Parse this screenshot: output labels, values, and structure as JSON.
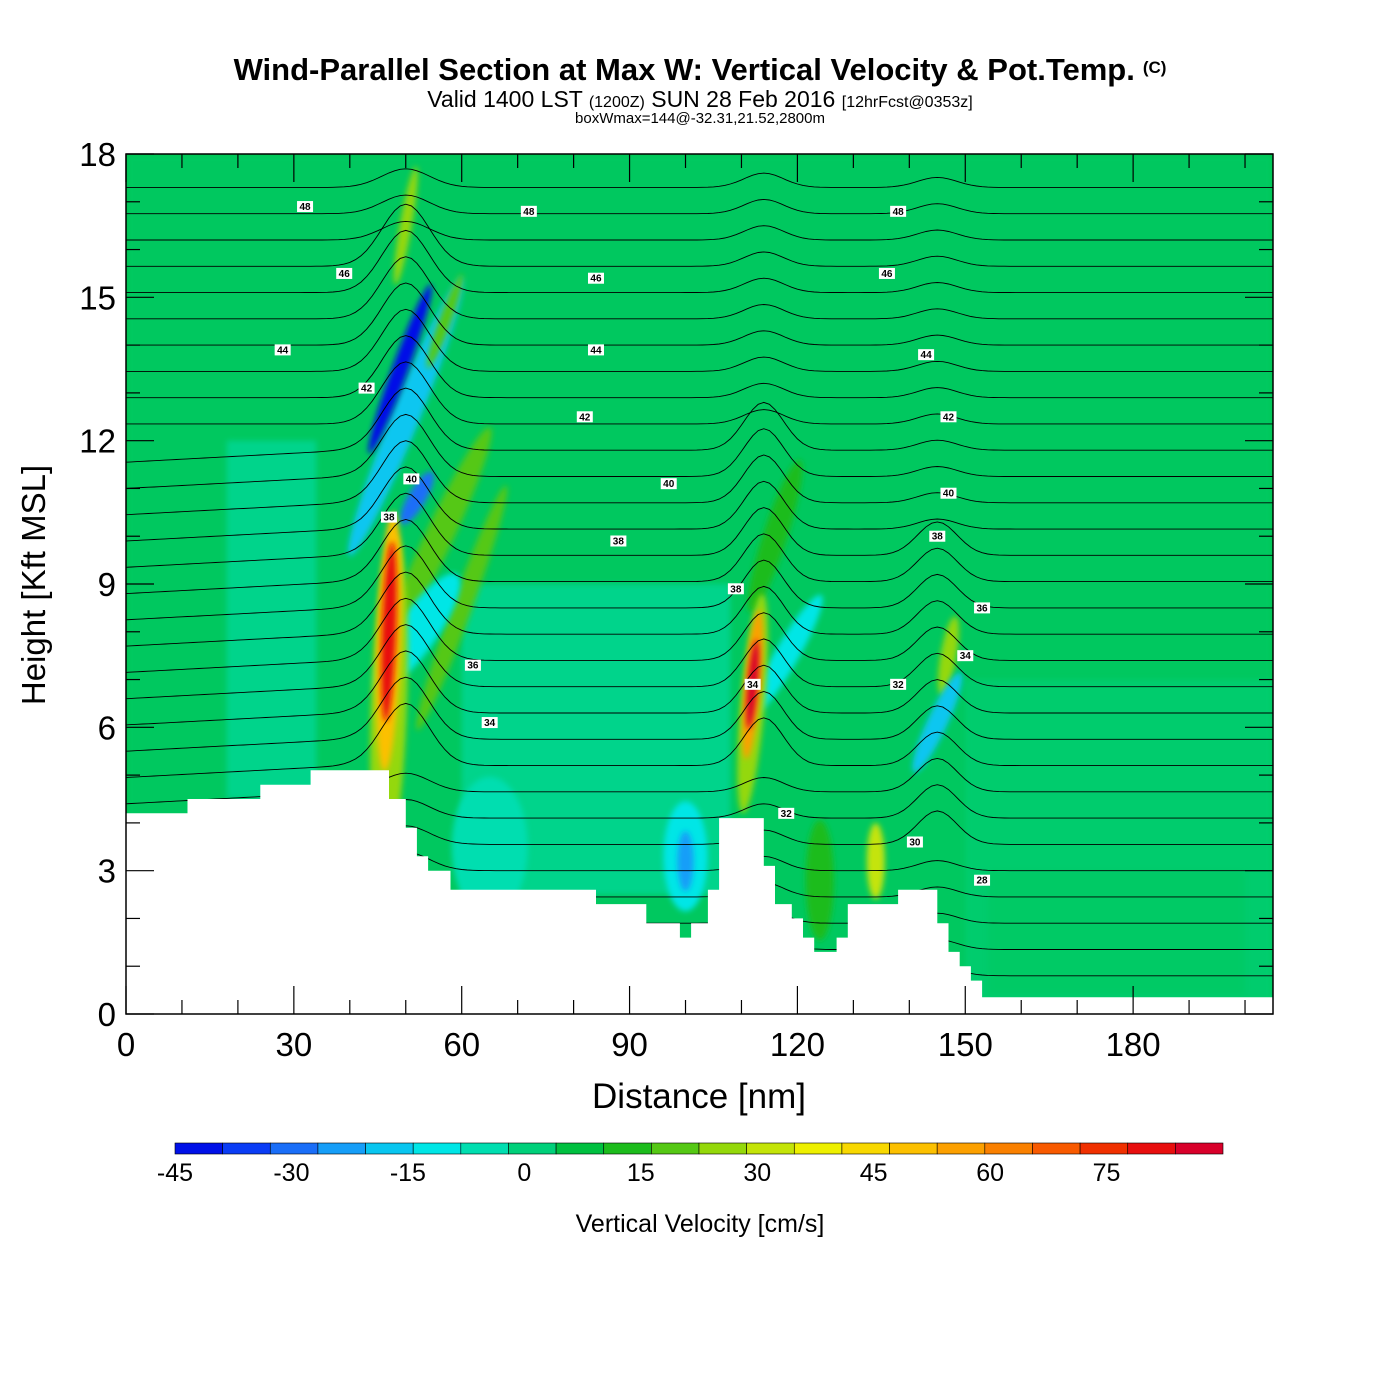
{
  "header": {
    "title": "Wind-Parallel Section at Max W: Vertical Velocity & Pot.Temp.",
    "copyright": "(C)",
    "subtitle_a": "Valid 1400 LST",
    "subtitle_b": "(1200Z)",
    "subtitle_c": "SUN 28 Feb 2016",
    "subtitle_d": "[12hrFcst@0353z]",
    "info": "boxWmax=144@-32.31,21.52,2800m"
  },
  "chart_data": {
    "type": "heatmap",
    "xlabel": "Distance [nm]",
    "ylabel": "Height [Kft MSL]",
    "xlim": [
      0,
      205
    ],
    "ylim": [
      0,
      18
    ],
    "xticks": [
      0,
      30,
      60,
      90,
      120,
      150,
      180
    ],
    "yticks": [
      0,
      3,
      6,
      9,
      12,
      15,
      18
    ],
    "colorbar": {
      "label": "Vertical Velocity [cm/s]",
      "ticks": [
        -45,
        -30,
        -15,
        0,
        15,
        30,
        45,
        60,
        75
      ],
      "range": [
        -45,
        90
      ],
      "colors": [
        "#0010e8",
        "#0a3cf5",
        "#1a6ef8",
        "#169ef8",
        "#09c6f0",
        "#00e6e6",
        "#00deb0",
        "#00d07a",
        "#00c040",
        "#1cbc1c",
        "#55c814",
        "#94d80a",
        "#c4e408",
        "#eef000",
        "#f8d800",
        "#fcc000",
        "#fca000",
        "#fa8000",
        "#f85a00",
        "#f03000",
        "#e80e0e",
        "#d8002a"
      ]
    },
    "w_features": [
      {
        "x": 47,
        "z": 8.0,
        "w": 88,
        "note": "updraft core"
      },
      {
        "x": 112,
        "z": 6.9,
        "w": 85,
        "note": "updraft core"
      },
      {
        "x": 49,
        "z": 13.5,
        "w": -45,
        "note": "downdraft"
      },
      {
        "x": 145,
        "z": 6.0,
        "w": -20,
        "note": "downdraft"
      },
      {
        "x": 134,
        "z": 3.8,
        "w": 30,
        "note": "updraft"
      }
    ],
    "theta_contour_labels": [
      {
        "text": "48",
        "x": 32,
        "z": 16.9
      },
      {
        "text": "48",
        "x": 72,
        "z": 16.8
      },
      {
        "text": "48",
        "x": 138,
        "z": 16.8
      },
      {
        "text": "46",
        "x": 39,
        "z": 15.5
      },
      {
        "text": "46",
        "x": 84,
        "z": 15.4
      },
      {
        "text": "46",
        "x": 136,
        "z": 15.5
      },
      {
        "text": "44",
        "x": 28,
        "z": 13.9
      },
      {
        "text": "44",
        "x": 84,
        "z": 13.9
      },
      {
        "text": "44",
        "x": 143,
        "z": 13.8
      },
      {
        "text": "42",
        "x": 43,
        "z": 13.1
      },
      {
        "text": "42",
        "x": 82,
        "z": 12.5
      },
      {
        "text": "42",
        "x": 147,
        "z": 12.5
      },
      {
        "text": "40",
        "x": 51,
        "z": 11.2
      },
      {
        "text": "40",
        "x": 97,
        "z": 11.1
      },
      {
        "text": "40",
        "x": 147,
        "z": 10.9
      },
      {
        "text": "38",
        "x": 47,
        "z": 10.4
      },
      {
        "text": "38",
        "x": 88,
        "z": 9.9
      },
      {
        "text": "38",
        "x": 109,
        "z": 8.9
      },
      {
        "text": "38",
        "x": 145,
        "z": 10.0
      },
      {
        "text": "36",
        "x": 153,
        "z": 8.5
      },
      {
        "text": "36",
        "x": 62,
        "z": 7.3
      },
      {
        "text": "34",
        "x": 65,
        "z": 6.1
      },
      {
        "text": "34",
        "x": 112,
        "z": 6.9
      },
      {
        "text": "34",
        "x": 150,
        "z": 7.5
      },
      {
        "text": "32",
        "x": 138,
        "z": 6.9
      },
      {
        "text": "32",
        "x": 118,
        "z": 4.2
      },
      {
        "text": "30",
        "x": 141,
        "z": 3.6
      },
      {
        "text": "28",
        "x": 153,
        "z": 2.8
      }
    ],
    "terrain_kft": [
      [
        0,
        4.2
      ],
      [
        11,
        4.2
      ],
      [
        11,
        4.5
      ],
      [
        24,
        4.5
      ],
      [
        24,
        4.8
      ],
      [
        33,
        4.8
      ],
      [
        33,
        5.1
      ],
      [
        47,
        5.1
      ],
      [
        47,
        4.5
      ],
      [
        50,
        4.5
      ],
      [
        50,
        3.9
      ],
      [
        52,
        3.9
      ],
      [
        52,
        3.3
      ],
      [
        54,
        3.3
      ],
      [
        54,
        3.0
      ],
      [
        58,
        3.0
      ],
      [
        58,
        2.6
      ],
      [
        84,
        2.6
      ],
      [
        84,
        2.3
      ],
      [
        93,
        2.3
      ],
      [
        93,
        1.9
      ],
      [
        99,
        1.9
      ],
      [
        99,
        1.6
      ],
      [
        101,
        1.6
      ],
      [
        101,
        1.9
      ],
      [
        104,
        1.9
      ],
      [
        104,
        2.6
      ],
      [
        106,
        2.6
      ],
      [
        106,
        4.1
      ],
      [
        114,
        4.1
      ],
      [
        114,
        3.1
      ],
      [
        116,
        3.1
      ],
      [
        116,
        2.3
      ],
      [
        119,
        2.3
      ],
      [
        119,
        2.0
      ],
      [
        121,
        2.0
      ],
      [
        121,
        1.6
      ],
      [
        123,
        1.6
      ],
      [
        123,
        1.3
      ],
      [
        127,
        1.3
      ],
      [
        127,
        1.6
      ],
      [
        129,
        1.6
      ],
      [
        129,
        2.3
      ],
      [
        138,
        2.3
      ],
      [
        138,
        2.6
      ],
      [
        145,
        2.6
      ],
      [
        145,
        1.9
      ],
      [
        147,
        1.9
      ],
      [
        147,
        1.3
      ],
      [
        149,
        1.3
      ],
      [
        149,
        1.0
      ],
      [
        151,
        1.0
      ],
      [
        151,
        0.7
      ],
      [
        153,
        0.7
      ],
      [
        153,
        0.35
      ],
      [
        205,
        0.35
      ]
    ]
  }
}
